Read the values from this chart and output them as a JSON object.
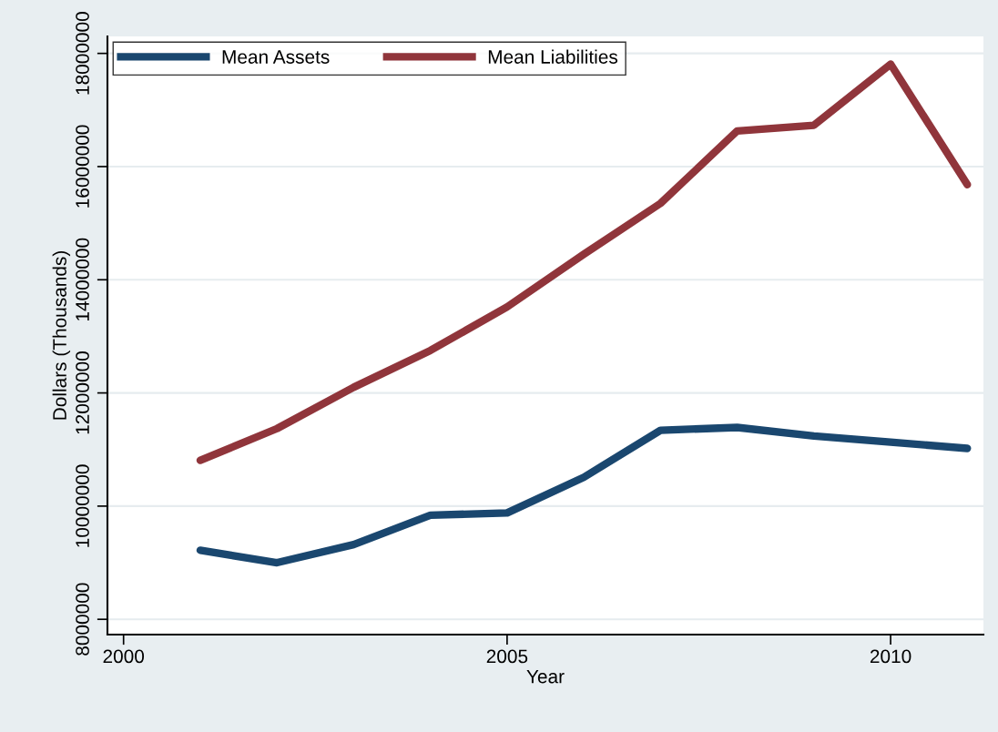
{
  "chart_data": {
    "type": "line",
    "xlabel": "Year",
    "ylabel": "Dollars (Thousands)",
    "x": [
      2001,
      2002,
      2003,
      2004,
      2005,
      2006,
      2007,
      2008,
      2009,
      2010,
      2011
    ],
    "series": [
      {
        "name": "Mean Assets",
        "color": "#1a476f",
        "values": [
          9220000,
          9000000,
          9320000,
          9840000,
          9880000,
          10510000,
          11340000,
          11390000,
          11240000,
          11130000,
          11020000
        ]
      },
      {
        "name": "Mean Liabilities",
        "color": "#90353b",
        "values": [
          10810000,
          11370000,
          12100000,
          12750000,
          13520000,
          14450000,
          15350000,
          16630000,
          16730000,
          17810000,
          15680000
        ]
      }
    ],
    "xlim": [
      1999.79,
      2011.21
    ],
    "xticks": [
      2000,
      2005,
      2010
    ],
    "ylim": [
      7730000,
      18300000
    ],
    "yticks": [
      8000000,
      10000000,
      12000000,
      14000000,
      16000000,
      18000000
    ],
    "grid": "y",
    "legend": "top left",
    "marker": "none",
    "line_style": "solid"
  }
}
